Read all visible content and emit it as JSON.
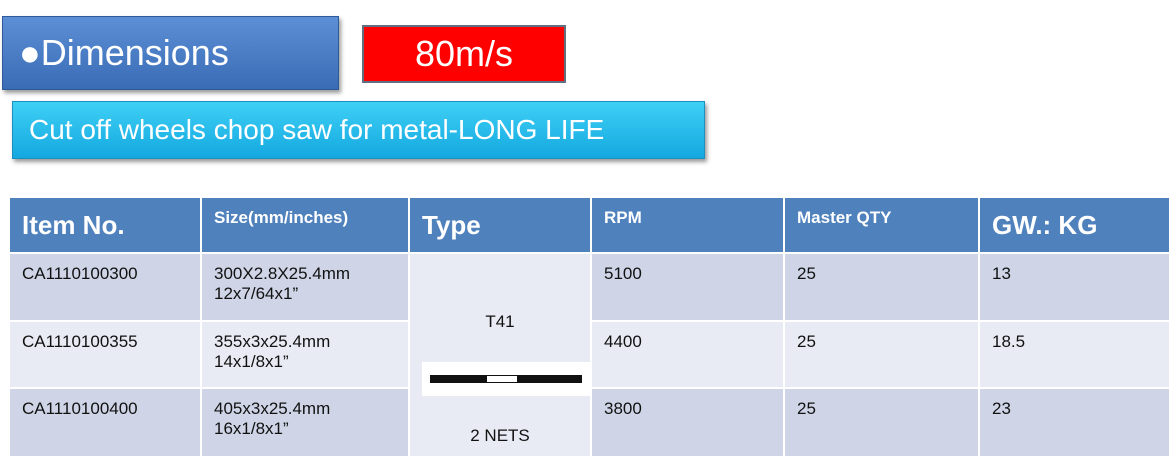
{
  "header": {
    "title": "●Dimensions",
    "speed": "80m/s",
    "subtitle": "Cut off wheels chop saw for metal-LONG LIFE"
  },
  "table": {
    "columns": [
      "Item No.",
      "Size(mm/inches)",
      "Type",
      "RPM",
      "Master QTY",
      "GW.:  KG"
    ],
    "type_cell": [
      "T41",
      "2 NETS"
    ],
    "rows": [
      {
        "item": "CA1110100300",
        "size": [
          "300X2.8X25.4mm",
          "12x7/64x1”"
        ],
        "rpm": "5100",
        "qty": "25",
        "gw": "13"
      },
      {
        "item": "CA1110100355",
        "size": [
          "355x3x25.4mm",
          "14x1/8x1”"
        ],
        "rpm": "4400",
        "qty": "25",
        "gw": "18.5"
      },
      {
        "item": "CA1110100400",
        "size": [
          "405x3x25.4mm",
          "16x1/8x1”"
        ],
        "rpm": "3800",
        "qty": "25",
        "gw": "23"
      }
    ]
  }
}
